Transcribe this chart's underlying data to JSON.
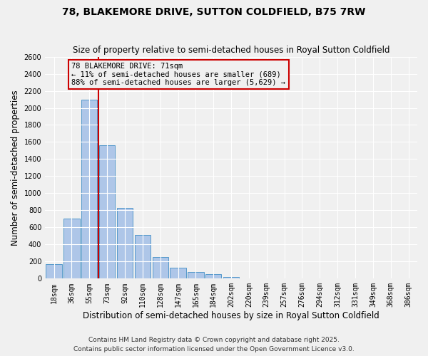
{
  "title": "78, BLAKEMORE DRIVE, SUTTON COLDFIELD, B75 7RW",
  "subtitle": "Size of property relative to semi-detached houses in Royal Sutton Coldfield",
  "xlabel": "Distribution of semi-detached houses by size in Royal Sutton Coldfield",
  "ylabel": "Number of semi-detached properties",
  "bar_labels": [
    "18sqm",
    "36sqm",
    "55sqm",
    "73sqm",
    "92sqm",
    "110sqm",
    "128sqm",
    "147sqm",
    "165sqm",
    "184sqm",
    "202sqm",
    "220sqm",
    "239sqm",
    "257sqm",
    "276sqm",
    "294sqm",
    "312sqm",
    "331sqm",
    "349sqm",
    "368sqm",
    "386sqm"
  ],
  "bar_values": [
    170,
    700,
    2100,
    1560,
    830,
    510,
    255,
    130,
    80,
    50,
    20,
    0,
    0,
    0,
    0,
    0,
    0,
    0,
    0,
    0,
    0
  ],
  "bar_color": "#aec6e8",
  "bar_edge_color": "#5599cc",
  "ylim": [
    0,
    2600
  ],
  "yticks": [
    0,
    200,
    400,
    600,
    800,
    1000,
    1200,
    1400,
    1600,
    1800,
    2000,
    2200,
    2400,
    2600
  ],
  "property_line_x": 2.5,
  "property_line_color": "#cc0000",
  "annotation_title": "78 BLAKEMORE DRIVE: 71sqm",
  "annotation_line1": "← 11% of semi-detached houses are smaller (689)",
  "annotation_line2": "88% of semi-detached houses are larger (5,629) →",
  "annotation_box_color": "#cc0000",
  "footnote1": "Contains HM Land Registry data © Crown copyright and database right 2025.",
  "footnote2": "Contains public sector information licensed under the Open Government Licence v3.0.",
  "background_color": "#f0f0f0",
  "grid_color": "#ffffff",
  "title_fontsize": 10,
  "subtitle_fontsize": 8.5,
  "axis_label_fontsize": 8.5,
  "tick_fontsize": 7,
  "footnote_fontsize": 6.5,
  "annotation_fontsize": 7.5
}
